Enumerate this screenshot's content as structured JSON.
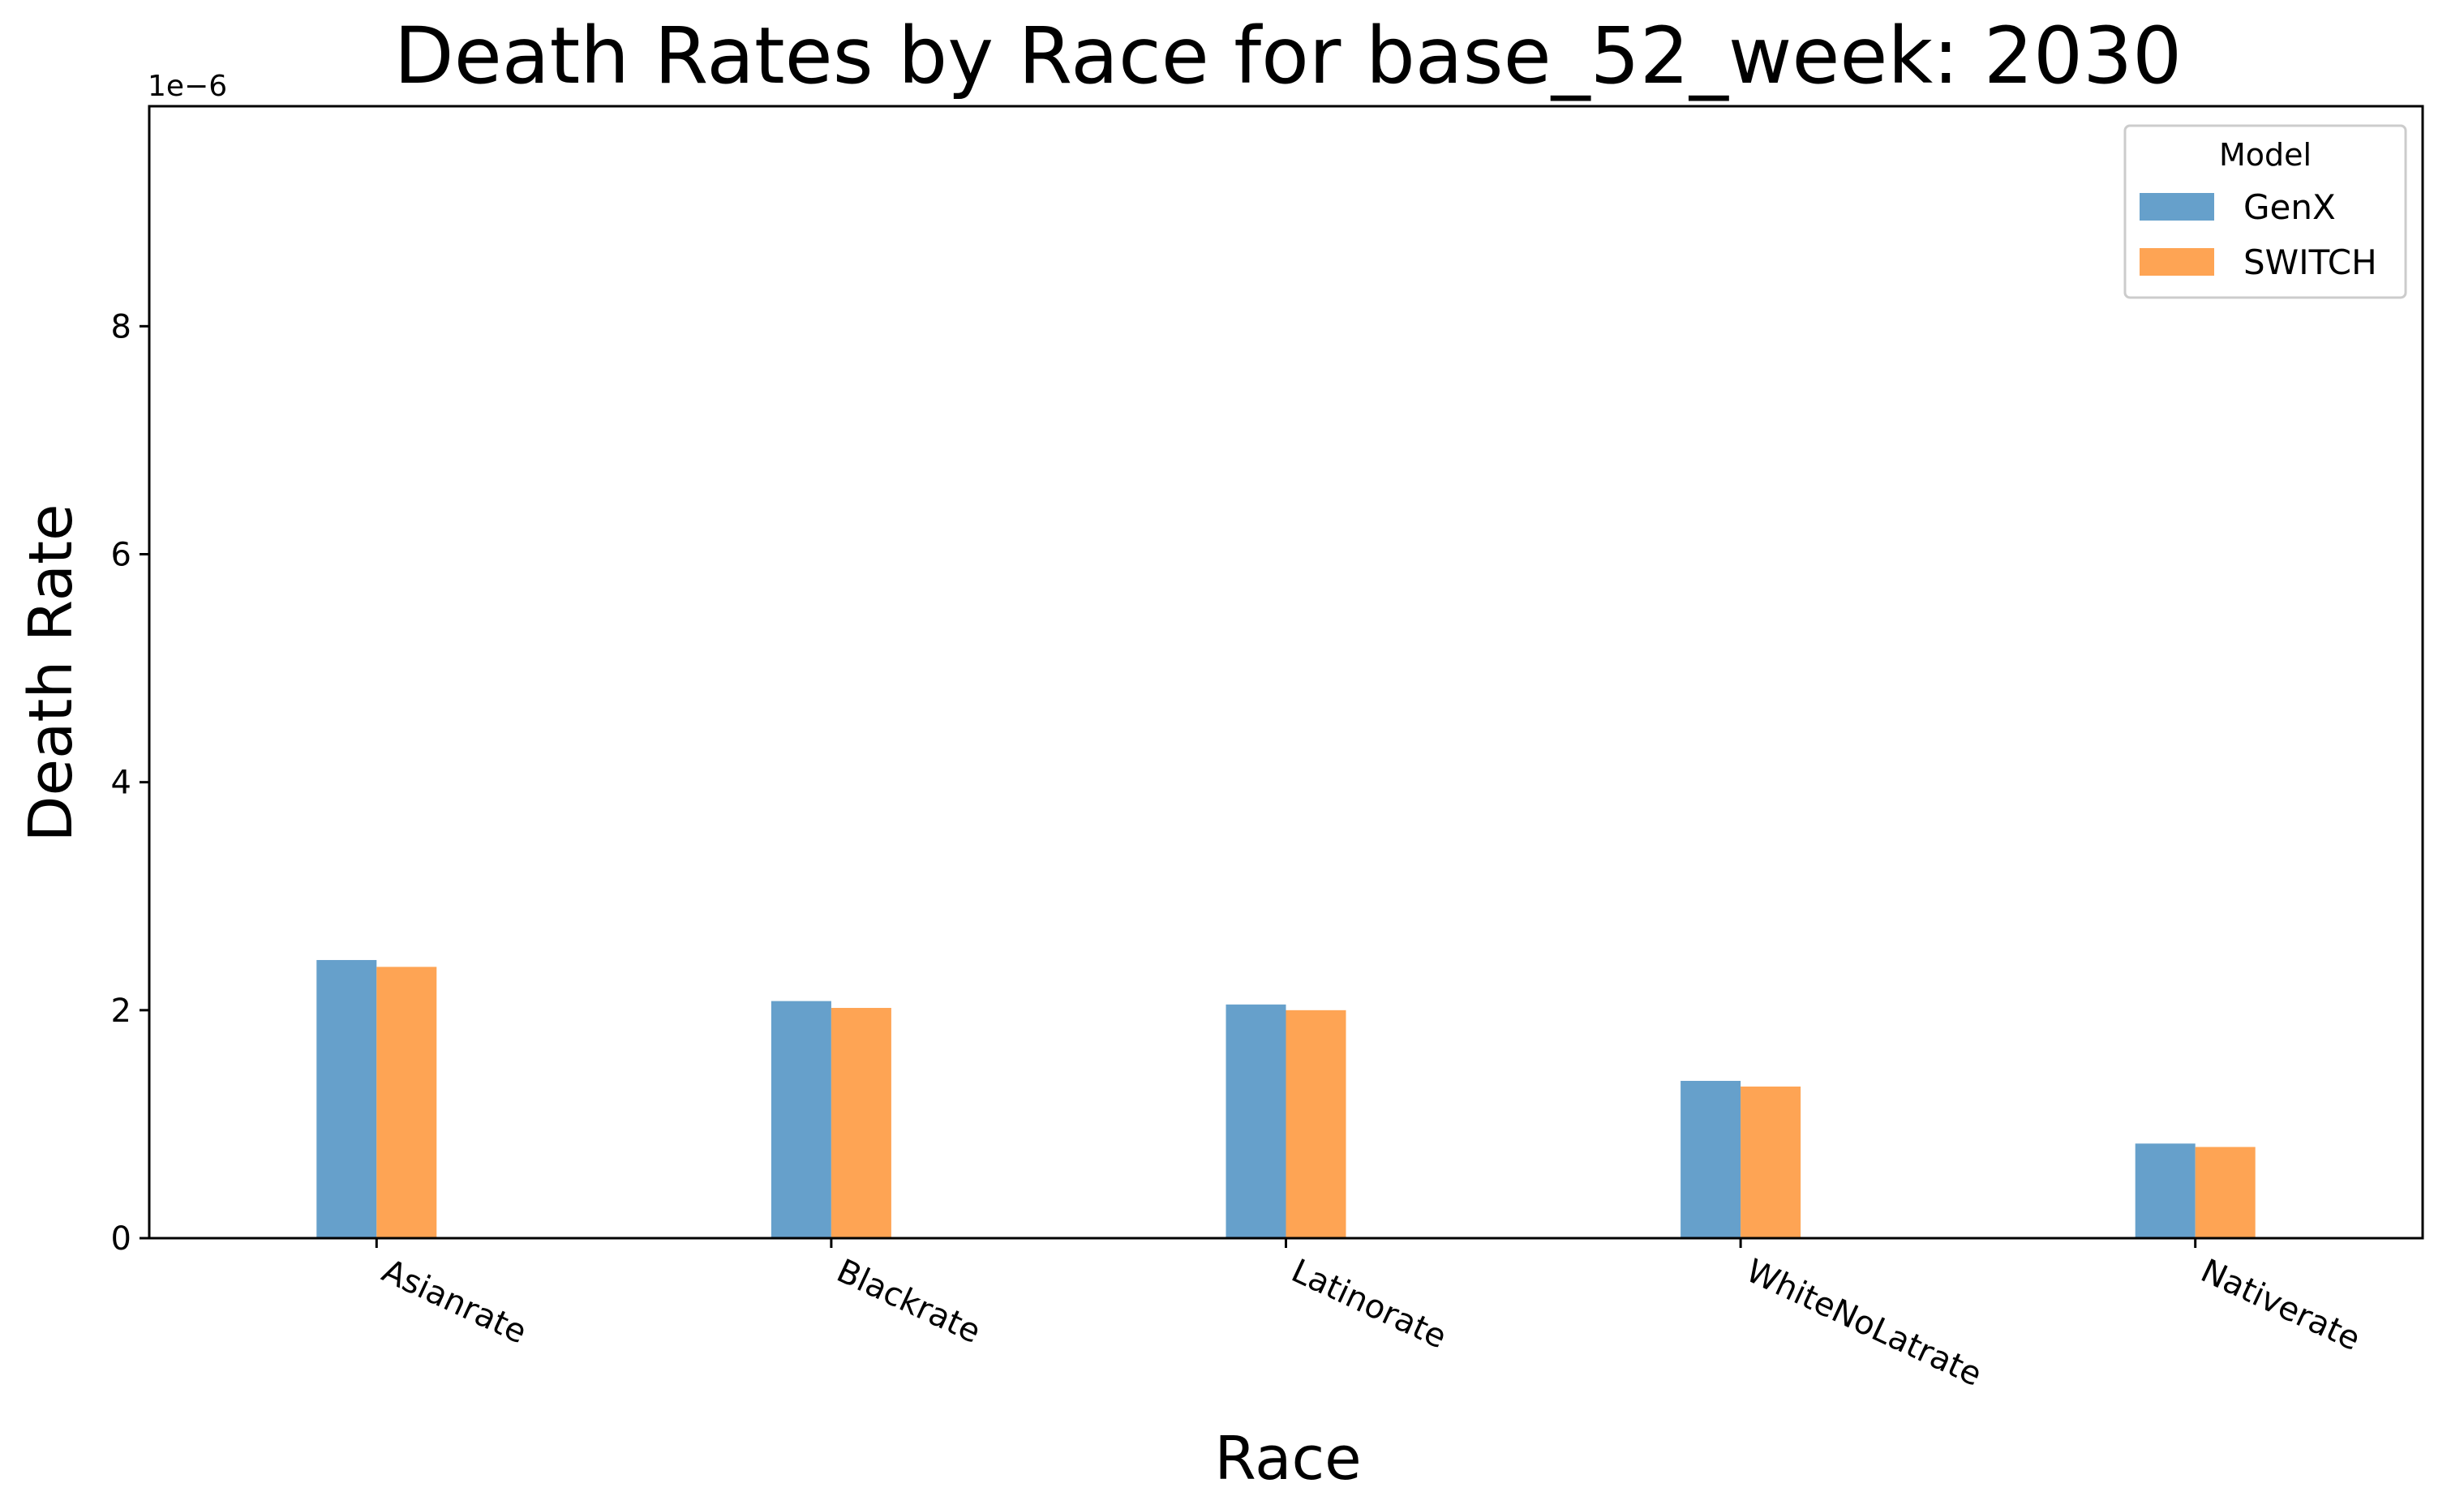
{
  "chart_data": {
    "type": "bar",
    "title": "Death Rates by Race for base_52_week: 2030",
    "xlabel": "Race",
    "ylabel": "Death Rate",
    "y_offset_label": "1e−6",
    "y_scale_factor": 1e-06,
    "categories": [
      "Asianrate",
      "Blackrate",
      "Latinorate",
      "WhiteNoLatrate",
      "Nativerate"
    ],
    "series": [
      {
        "name": "GenX",
        "color": "#66a0cb",
        "values": [
          2.44e-06,
          2.08e-06,
          2.05e-06,
          1.38e-06,
          8.3e-07
        ]
      },
      {
        "name": "SWITCH",
        "color": "#fea454",
        "values": [
          2.38e-06,
          2.02e-06,
          2e-06,
          1.33e-06,
          8e-07
        ]
      }
    ],
    "ylim": [
      0,
      9.93e-06
    ],
    "yticks": [
      0,
      2,
      4,
      6,
      8
    ],
    "legend": {
      "title": "Model",
      "placement": "top-right"
    },
    "grid": false
  }
}
